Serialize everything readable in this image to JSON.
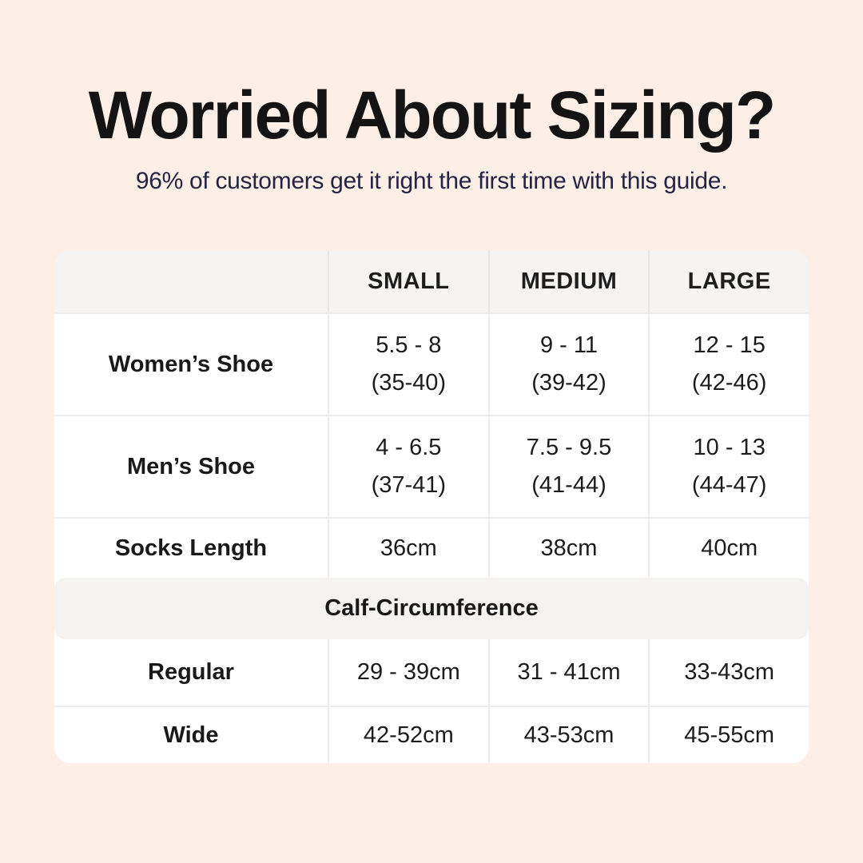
{
  "page": {
    "background_color": "#fdeee6",
    "title": "Worried About Sizing?",
    "subtitle": "96% of customers get it right the first time with this guide.",
    "title_color": "#141414",
    "subtitle_color": "#242445"
  },
  "table": {
    "colors": {
      "header_bg": "#f5f4f2",
      "section_bg": "#f4f3f1",
      "body_bg": "#ffffff",
      "divider": "#ededed",
      "text": "#1c1c1c"
    },
    "columns": [
      "SMALL",
      "MEDIUM",
      "LARGE"
    ],
    "shoe_rows": [
      {
        "label": "Women’s Shoe",
        "cells": [
          {
            "range": "5.5 - 8",
            "eu": "(35-40)"
          },
          {
            "range": "9 - 11",
            "eu": "(39-42)"
          },
          {
            "range": "12 - 15",
            "eu": "(42-46)"
          }
        ]
      },
      {
        "label": "Men’s Shoe",
        "cells": [
          {
            "range": "4 - 6.5",
            "eu": "(37-41)"
          },
          {
            "range": "7.5 - 9.5",
            "eu": "(41-44)"
          },
          {
            "range": "10 - 13",
            "eu": "(44-47)"
          }
        ]
      }
    ],
    "socks_row": {
      "label": "Socks Length",
      "cells": [
        "36cm",
        "38cm",
        "40cm"
      ]
    },
    "section_label": "Calf-Circumference",
    "calf_rows": [
      {
        "label": "Regular",
        "cells": [
          "29 - 39cm",
          "31 - 41cm",
          "33-43cm"
        ]
      },
      {
        "label": "Wide",
        "cells": [
          "42-52cm",
          "43-53cm",
          "45-55cm"
        ]
      }
    ]
  },
  "chart_data": {
    "type": "table",
    "title": "Worried About Sizing?",
    "subtitle": "96% of customers get it right the first time with this guide.",
    "columns": [
      "",
      "SMALL",
      "MEDIUM",
      "LARGE"
    ],
    "rows": [
      [
        "Women’s Shoe",
        "5.5 - 8 (35-40)",
        "9 - 11 (39-42)",
        "12 - 15 (42-46)"
      ],
      [
        "Men’s Shoe",
        "4 - 6.5 (37-41)",
        "7.5 - 9.5 (41-44)",
        "10 - 13 (44-47)"
      ],
      [
        "Socks Length",
        "36cm",
        "38cm",
        "40cm"
      ],
      [
        "Calf-Circumference",
        "",
        "",
        ""
      ],
      [
        "Regular",
        "29 - 39cm",
        "31 - 41cm",
        "33-43cm"
      ],
      [
        "Wide",
        "42-52cm",
        "43-53cm",
        "45-55cm"
      ]
    ]
  }
}
